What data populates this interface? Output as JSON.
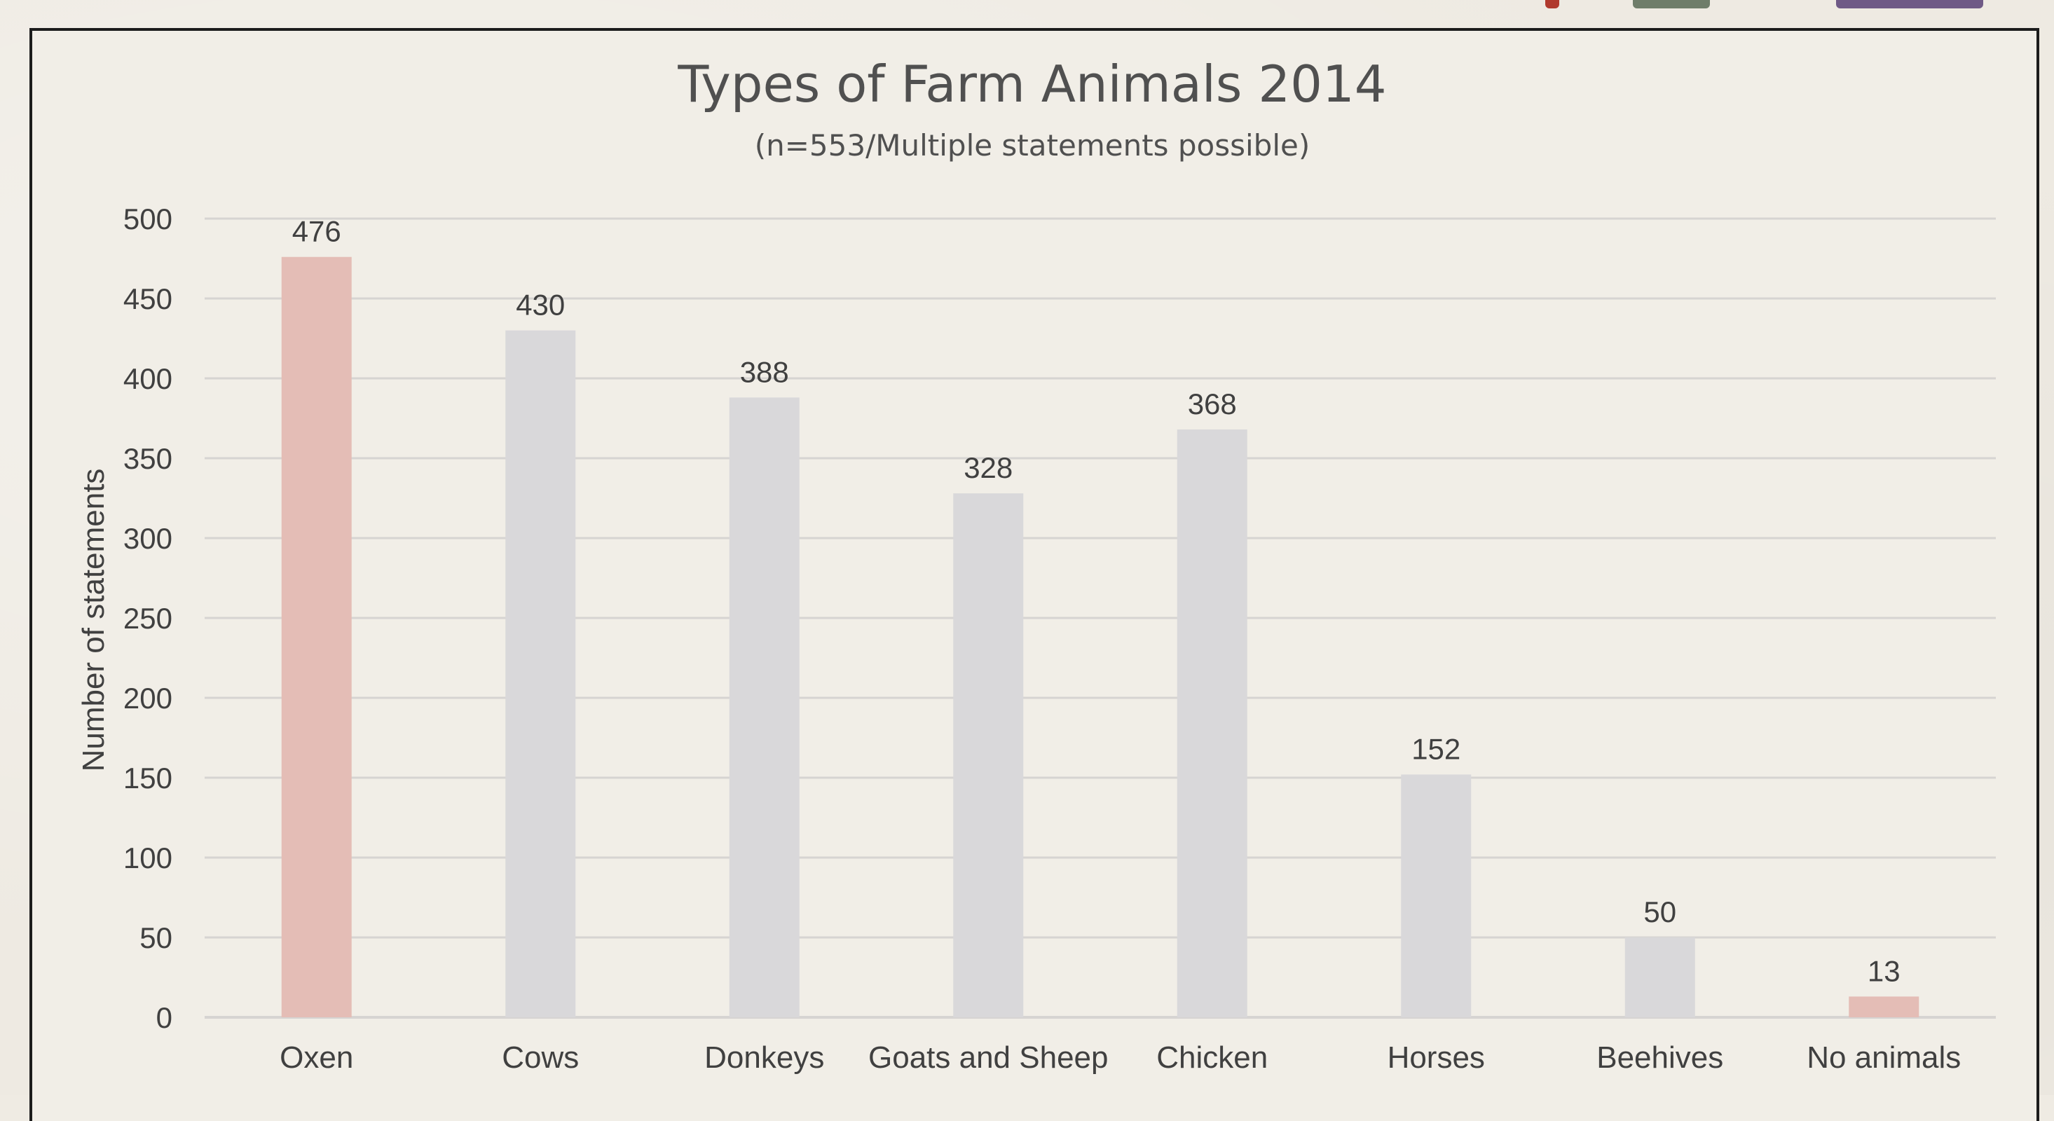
{
  "chart_data": {
    "type": "bar",
    "title": "Types of Farm Animals 2014",
    "subtitle": "(n=553/Multiple statements possible)",
    "xlabel": "",
    "ylabel": "Number of statements",
    "ylim": [
      0,
      500
    ],
    "yticks": [
      0,
      50,
      100,
      150,
      200,
      250,
      300,
      350,
      400,
      450,
      500
    ],
    "categories": [
      "Oxen",
      "Cows",
      "Donkeys",
      "Goats and Sheep",
      "Chicken",
      "Horses",
      "Beehives",
      "No animals"
    ],
    "values": [
      476,
      430,
      388,
      328,
      368,
      152,
      50,
      13
    ],
    "colors": {
      "highlight": "#e4bdb6",
      "default": "#d9d8da",
      "grid": "#d6d4d2",
      "text": "#404040",
      "title": "#505050"
    },
    "bar_colors": [
      "highlight",
      "default",
      "default",
      "default",
      "default",
      "default",
      "default",
      "highlight"
    ],
    "grid": true,
    "legend": "none"
  }
}
